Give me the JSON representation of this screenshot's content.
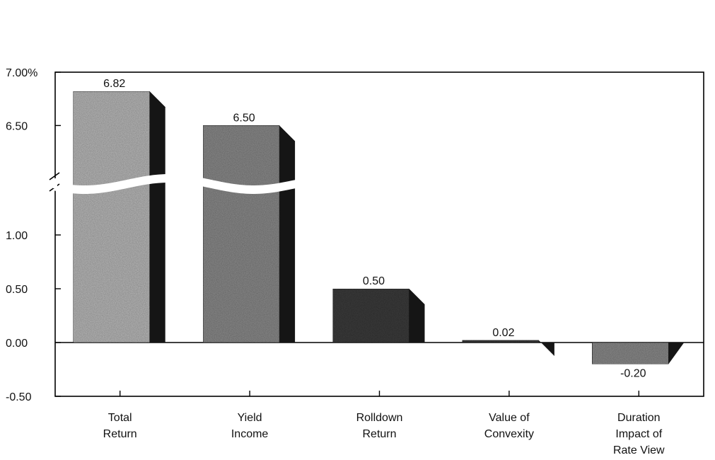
{
  "chart_data": {
    "type": "bar",
    "title": "",
    "xlabel": "",
    "ylabel": "",
    "categories": [
      [
        "Total",
        "Return"
      ],
      [
        "Yield",
        "Income"
      ],
      [
        "Rolldown",
        "Return"
      ],
      [
        "Value of",
        "Convexity"
      ],
      [
        "Duration",
        "Impact of",
        "Rate View"
      ]
    ],
    "values": [
      6.82,
      6.5,
      0.5,
      0.02,
      -0.2
    ],
    "value_labels": [
      "6.82",
      "6.50",
      "0.50",
      "0.02",
      "-0.20"
    ],
    "y_axis": {
      "scale": "broken",
      "lower_range": [
        -0.5,
        1.25
      ],
      "upper_range": [
        6.35,
        7.0
      ],
      "tick_values": [
        7.0,
        6.5,
        1.0,
        0.5,
        0.0,
        -0.5
      ],
      "tick_labels": [
        "7.00%",
        "6.50",
        "1.00",
        "0.50",
        "0.00",
        "-0.50"
      ]
    },
    "grid": false,
    "legend": "none",
    "colors": {
      "bar_light": "#b8b8b8",
      "bar_mid": "#8a8a8a",
      "bar_dark": "#3c3c3c",
      "bar_side": "#151515",
      "axis": "#000000"
    }
  }
}
